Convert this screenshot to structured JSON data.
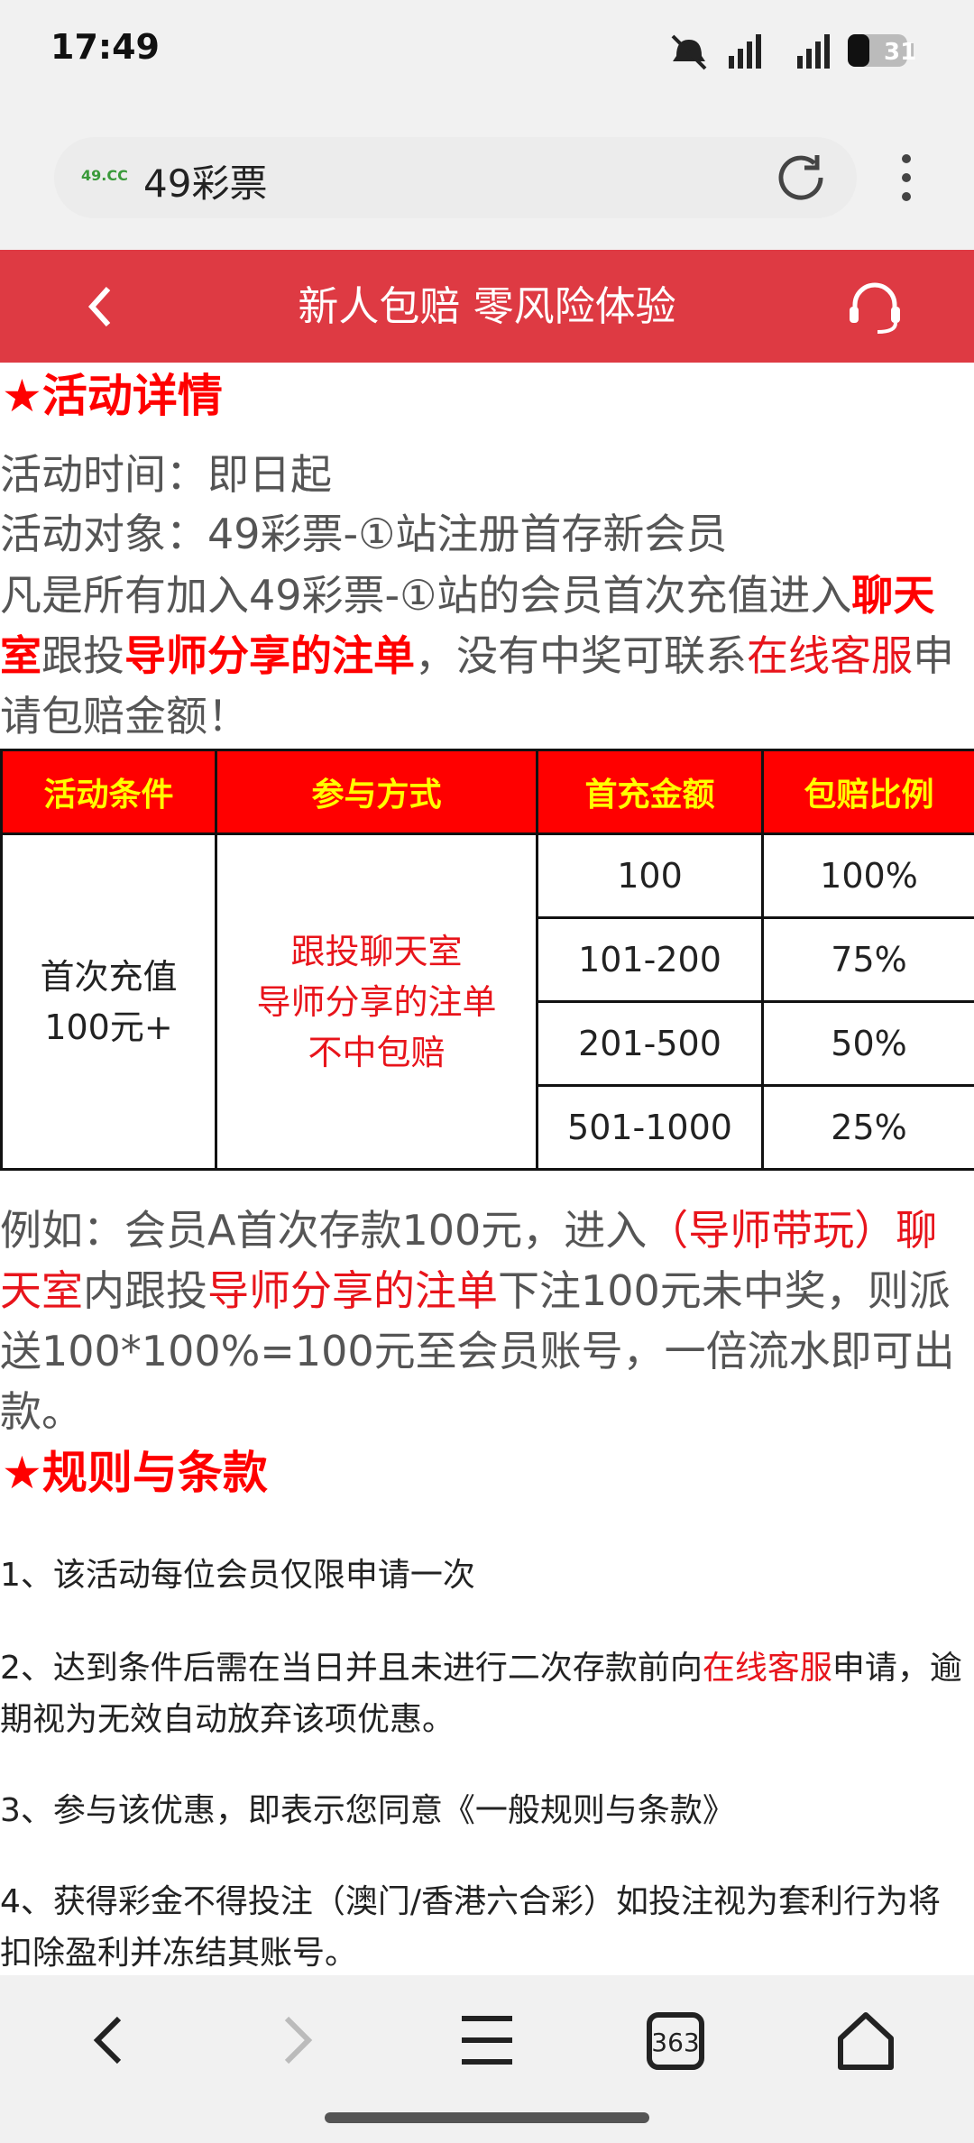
{
  "status_bar": {
    "time": "17:49",
    "battery": "31"
  },
  "browser": {
    "site_logo": "49.CC",
    "title": "49彩票",
    "tab_count": "363"
  },
  "header": {
    "title": "新人包赔 零风险体验"
  },
  "details": {
    "heading": "★活动详情",
    "time_line": "活动时间：即日起",
    "target_line": "活动对象：49彩票-①站注册首存新会员",
    "intro": [
      "凡是所有加入49彩票-①站的会员首次充值进入",
      "聊天室",
      "跟投",
      "导师分享的注单",
      "，没有中奖可联系",
      "在线客服",
      "申请包赔金额！"
    ]
  },
  "table": {
    "headers": [
      "活动条件",
      "参与方式",
      "首充金额",
      "包赔比例"
    ],
    "condition": [
      "首次充值",
      "100元+"
    ],
    "method": [
      "跟投聊天室",
      "导师分享的注单",
      "不中包赔"
    ],
    "rows": [
      [
        "100",
        "100%"
      ],
      [
        "101-200",
        "75%"
      ],
      [
        "201-500",
        "50%"
      ],
      [
        "501-1000",
        "25%"
      ]
    ]
  },
  "example": [
    "例如：会员A首次存款100元，进入",
    "（导师带玩）聊天室",
    "内跟投",
    "导师分享的注单",
    "下注100元未中奖，则派送100*100%=100元至会员账号，一倍流水即可出款。"
  ],
  "rules": {
    "heading": "★规则与条款",
    "items": [
      [
        "1、该活动每位会员仅限申请一次"
      ],
      [
        "2、达到条件后需在当日并且未进行二次存款前向",
        "在线客服",
        "申请，逾期视为无效自动放弃该项优惠。"
      ],
      [
        "3、参与该优惠，即表示您同意《一般规则与条款》"
      ],
      [
        "4、获得彩金不得投注（澳门/香港六合彩）如投注视为套利行为将扣除盈利并冻结其账号。"
      ]
    ]
  }
}
